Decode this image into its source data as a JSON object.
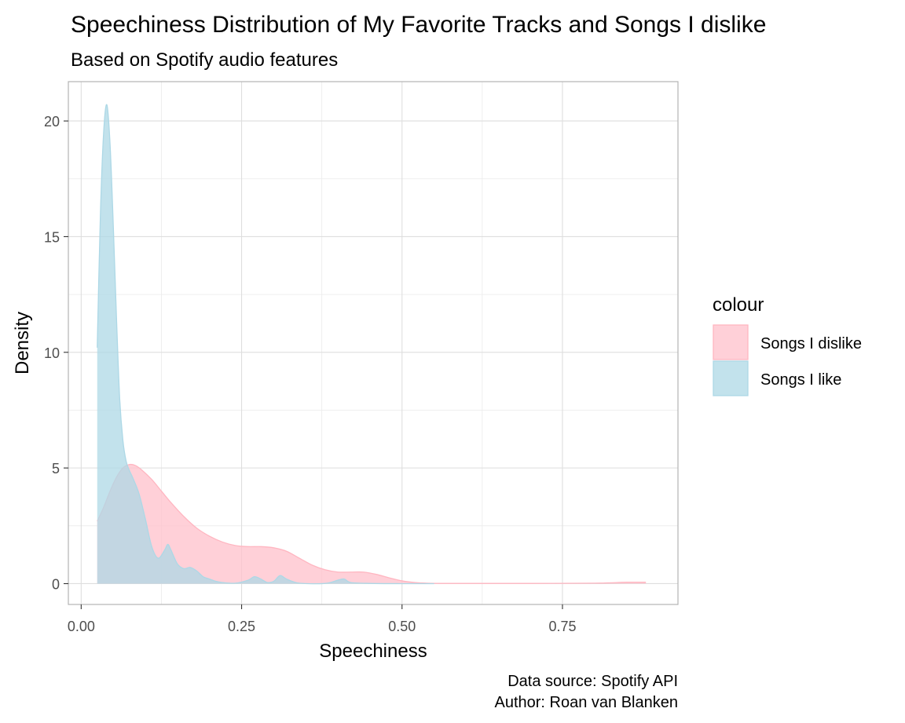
{
  "chart_data": {
    "type": "area",
    "title": "Speechiness Distribution of My Favorite Tracks and Songs I dislike",
    "subtitle": "Based on Spotify audio features",
    "xlabel": "Speechiness",
    "ylabel": "Density",
    "xlim": [
      -0.02,
      0.93
    ],
    "ylim": [
      -0.9,
      21.7
    ],
    "x_ticks": [
      0,
      0.25,
      0.5,
      0.75
    ],
    "x_tick_labels": [
      "0.00",
      "0.25",
      "0.50",
      "0.75"
    ],
    "y_ticks": [
      0,
      5,
      10,
      15,
      20
    ],
    "y_tick_labels": [
      "0",
      "5",
      "10",
      "15",
      "20"
    ],
    "grid": true,
    "legend": {
      "title": "colour",
      "placement": "right",
      "entries": [
        "Songs I dislike",
        "Songs I like"
      ]
    },
    "caption": [
      "Data source: Spotify API",
      "Author: Roan van Blanken"
    ],
    "series": [
      {
        "name": "Songs I dislike",
        "fill": "#ffc0cb",
        "stroke": "#ffb6c1",
        "x": [
          0.025,
          0.035,
          0.045,
          0.055,
          0.065,
          0.075,
          0.085,
          0.095,
          0.11,
          0.125,
          0.14,
          0.16,
          0.18,
          0.2,
          0.22,
          0.24,
          0.26,
          0.28,
          0.3,
          0.32,
          0.34,
          0.36,
          0.38,
          0.4,
          0.42,
          0.44,
          0.46,
          0.48,
          0.5,
          0.52,
          0.54,
          0.56,
          0.6,
          0.7,
          0.8,
          0.85,
          0.88
        ],
        "y": [
          2.7,
          3.3,
          4.0,
          4.6,
          5.0,
          5.15,
          5.1,
          4.9,
          4.5,
          4.0,
          3.5,
          2.9,
          2.4,
          2.05,
          1.8,
          1.65,
          1.6,
          1.6,
          1.55,
          1.4,
          1.1,
          0.8,
          0.6,
          0.5,
          0.5,
          0.5,
          0.4,
          0.25,
          0.12,
          0.05,
          0.02,
          0.01,
          0.01,
          0.01,
          0.02,
          0.06,
          0.06
        ]
      },
      {
        "name": "Songs I like",
        "fill": "#add8e6",
        "stroke": "#add8e6",
        "x": [
          0.025,
          0.03,
          0.035,
          0.04,
          0.045,
          0.05,
          0.055,
          0.06,
          0.065,
          0.07,
          0.075,
          0.08,
          0.09,
          0.1,
          0.11,
          0.12,
          0.13,
          0.135,
          0.14,
          0.15,
          0.16,
          0.17,
          0.18,
          0.19,
          0.2,
          0.21,
          0.22,
          0.24,
          0.26,
          0.27,
          0.28,
          0.29,
          0.3,
          0.31,
          0.32,
          0.34,
          0.38,
          0.4,
          0.41,
          0.42,
          0.45,
          0.5,
          0.55
        ],
        "y": [
          10.2,
          16.0,
          19.5,
          20.7,
          19.0,
          15.5,
          11.5,
          8.0,
          6.2,
          5.3,
          4.9,
          4.6,
          3.9,
          2.8,
          1.6,
          1.1,
          1.45,
          1.7,
          1.45,
          0.85,
          0.65,
          0.7,
          0.55,
          0.3,
          0.2,
          0.1,
          0.05,
          0.02,
          0.15,
          0.3,
          0.2,
          0.05,
          0.1,
          0.35,
          0.2,
          0.02,
          0.01,
          0.15,
          0.2,
          0.05,
          0.01,
          0.0,
          0.0
        ]
      }
    ]
  }
}
